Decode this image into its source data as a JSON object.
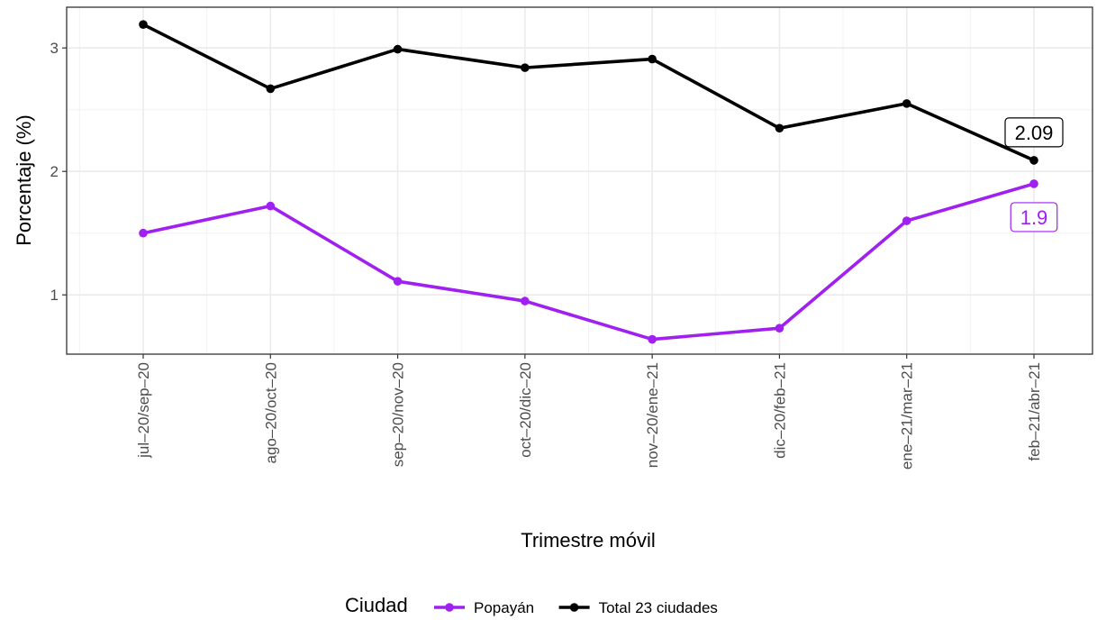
{
  "chart_data": {
    "type": "line",
    "xlabel": "Trimestre móvil",
    "ylabel": "Porcentaje (%)",
    "categories": [
      "jul–20/sep–20",
      "ago–20/oct–20",
      "sep–20/nov–20",
      "oct–20/dic–20",
      "nov–20/ene–21",
      "dic–20/feb–21",
      "ene–21/mar–21",
      "feb–21/abr–21"
    ],
    "yticks": [
      1,
      2,
      3
    ],
    "ylim": [
      0.52,
      3.33
    ],
    "grid": true,
    "legend": {
      "title": "Ciudad",
      "position": "bottom"
    },
    "series": [
      {
        "name": "Popayán",
        "color": "#a020f0",
        "values": [
          1.5,
          1.72,
          1.11,
          0.95,
          0.64,
          0.73,
          1.6,
          1.9
        ],
        "end_label": "1.9"
      },
      {
        "name": "Total 23 ciudades",
        "color": "#000000",
        "values": [
          3.19,
          2.67,
          2.99,
          2.84,
          2.91,
          2.35,
          2.55,
          2.09
        ],
        "end_label": "2.09"
      }
    ]
  }
}
